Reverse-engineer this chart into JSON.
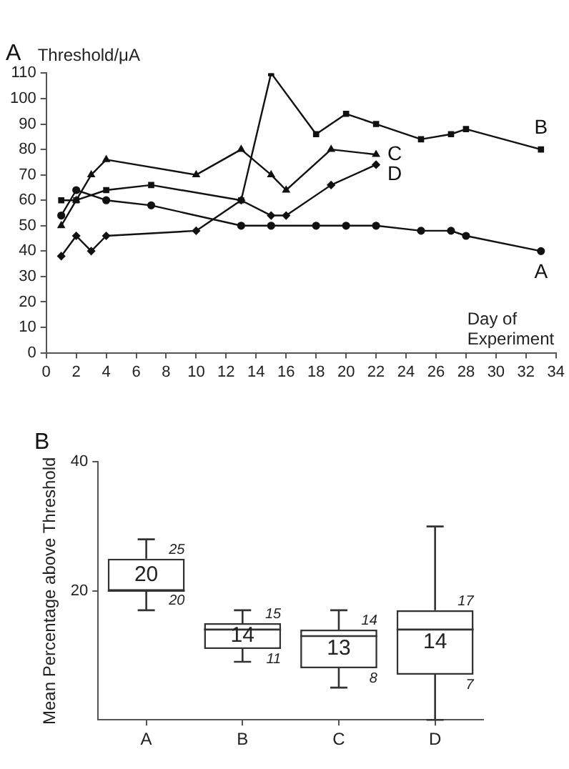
{
  "chart_data": [
    {
      "type": "line",
      "title": "A",
      "ylabel": "Threshold/μA",
      "xlabel": "Day of Experiment",
      "xlim": [
        0,
        34
      ],
      "xticks": [
        0,
        2,
        4,
        6,
        8,
        10,
        12,
        14,
        16,
        18,
        20,
        22,
        24,
        26,
        28,
        30,
        32,
        34
      ],
      "ylim": [
        0,
        110
      ],
      "yticks": [
        0,
        10,
        20,
        30,
        40,
        50,
        60,
        70,
        80,
        90,
        100,
        110
      ],
      "grid": false,
      "legend": false,
      "series": [
        {
          "name": "A",
          "color": "#111111",
          "marker": "circle",
          "x": [
            1,
            2,
            4,
            7,
            13,
            15,
            18,
            20,
            22,
            25,
            27,
            28,
            33
          ],
          "values": [
            54,
            64,
            60,
            58,
            50,
            50,
            50,
            50,
            50,
            48,
            48,
            46,
            40
          ]
        },
        {
          "name": "B",
          "color": "#111111",
          "marker": "square",
          "x": [
            1,
            2,
            4,
            7,
            13,
            15,
            18,
            20,
            22,
            25,
            27,
            28,
            33
          ],
          "values": [
            60,
            60,
            64,
            66,
            60,
            110,
            86,
            94,
            90,
            84,
            86,
            88,
            80
          ]
        },
        {
          "name": "C",
          "color": "#111111",
          "marker": "triangle",
          "x": [
            1,
            2,
            3,
            4,
            10,
            13,
            15,
            16,
            19,
            22
          ],
          "values": [
            50,
            60,
            70,
            76,
            70,
            80,
            70,
            64,
            80,
            78
          ]
        },
        {
          "name": "D",
          "color": "#111111",
          "marker": "diamond",
          "x": [
            1,
            2,
            3,
            4,
            10,
            13,
            15,
            16,
            19,
            22
          ],
          "values": [
            38,
            46,
            40,
            46,
            48,
            60,
            54,
            54,
            66,
            74
          ]
        }
      ]
    },
    {
      "type": "box",
      "title": "B",
      "ylabel": "Mean Percentage above Threshold",
      "categories": [
        "A",
        "B",
        "C",
        "D"
      ],
      "ylim": [
        0,
        40
      ],
      "yticks": [
        20,
        40
      ],
      "grid": false,
      "legend": false,
      "color": "#333333",
      "boxes": [
        {
          "low": 17,
          "q1": 20,
          "median": 20,
          "q3": 25,
          "high": 28
        },
        {
          "low": 9,
          "q1": 11,
          "median": 14,
          "q3": 15,
          "high": 17
        },
        {
          "low": 5,
          "q1": 8,
          "median": 13,
          "q3": 14,
          "high": 17
        },
        {
          "low": 0,
          "q1": 7,
          "median": 14,
          "q3": 17,
          "high": 30
        }
      ],
      "annotations": [
        {
          "text": "20",
          "x": "A",
          "y": 20
        },
        {
          "text": "25",
          "x": "A",
          "y": 25
        },
        {
          "text": "20",
          "x": "A",
          "y": 20
        },
        {
          "text": "14",
          "x": "B",
          "y": 14
        },
        {
          "text": "15",
          "x": "B",
          "y": 15
        },
        {
          "text": "11",
          "x": "B",
          "y": 11
        },
        {
          "text": "13",
          "x": "C",
          "y": 13
        },
        {
          "text": "14",
          "x": "C",
          "y": 14
        },
        {
          "text": "8",
          "x": "C",
          "y": 8
        },
        {
          "text": "14",
          "x": "D",
          "y": 14
        },
        {
          "text": "17",
          "x": "D",
          "y": 17
        },
        {
          "text": "7",
          "x": "D",
          "y": 7
        }
      ]
    }
  ]
}
